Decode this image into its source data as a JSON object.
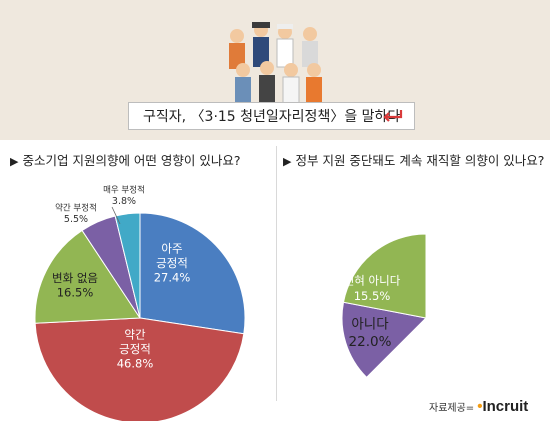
{
  "header": {
    "title": "구직자, 〈3·15 청년일자리정책〉을 말하다"
  },
  "chart_data": [
    {
      "type": "pie",
      "title": "중소기업 지원의향에 어떤 영향이 있나요?",
      "slices": [
        {
          "label": "아주\n긍정적",
          "value": 27.4,
          "value_label": "27.4%",
          "color": "#4a7ec1"
        },
        {
          "label": "약간\n긍정적",
          "value": 46.8,
          "value_label": "46.8%",
          "color": "#c04c4c"
        },
        {
          "label": "변화 없음",
          "value": 16.5,
          "value_label": "16.5%",
          "color": "#92b653"
        },
        {
          "label": "약간 부정적",
          "value": 5.5,
          "value_label": "5.5%",
          "color": "#7b60a5"
        },
        {
          "label": "매우 부정적",
          "value": 3.8,
          "value_label": "3.8%",
          "color": "#41a9c7"
        }
      ]
    },
    {
      "type": "pie",
      "title": "정부 지원 중단돼도 계속 재직할 의향이 있나요?",
      "slices": [
        {
          "label": "전혀 아니다",
          "value": 15.5,
          "value_label": "15.5%",
          "color": "#7b60a5"
        },
        {
          "label": "아니다",
          "value": 22.0,
          "value_label": "22.0%",
          "color": "#92b653"
        }
      ]
    }
  ],
  "source": {
    "label": "자료제공=",
    "logo": "Incruit"
  }
}
